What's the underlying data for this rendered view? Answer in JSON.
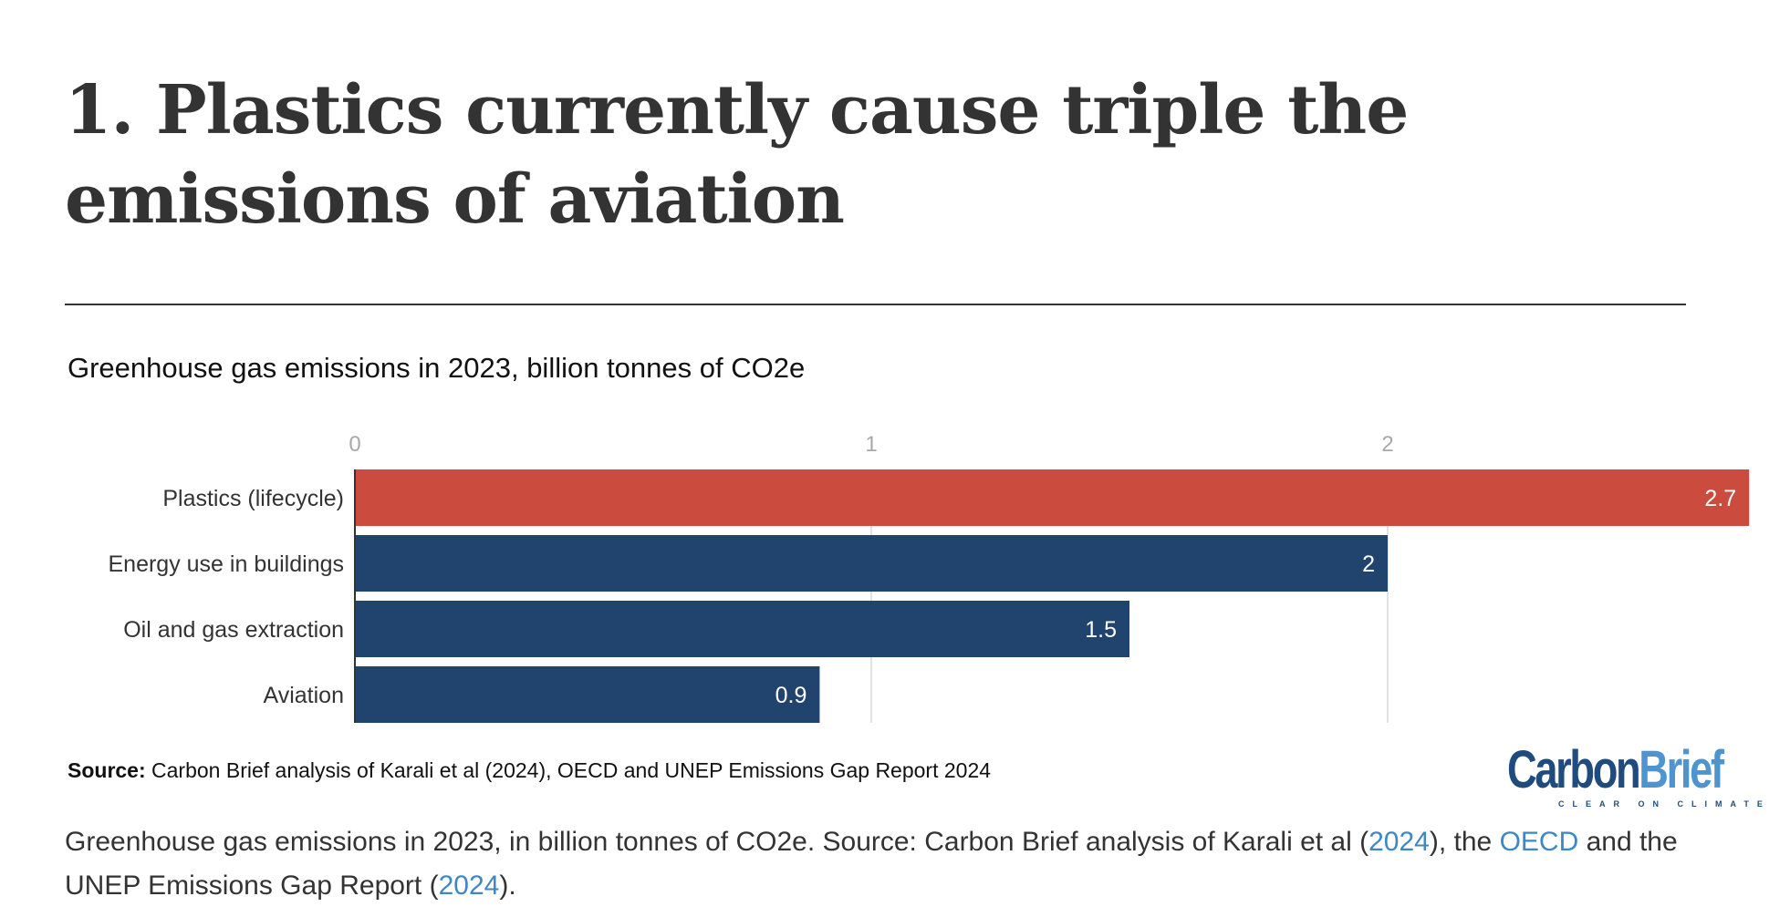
{
  "header": {
    "title": "1. Plastics currently cause triple the emissions of aviation"
  },
  "chart_data": {
    "type": "bar",
    "orientation": "horizontal",
    "title": "Greenhouse gas emissions in 2023, billion tonnes of CO2e",
    "xlabel": "",
    "ylabel": "",
    "categories": [
      "Plastics (lifecycle)",
      "Energy use in buildings",
      "Oil and gas extraction",
      "Aviation"
    ],
    "values": [
      2.7,
      2,
      1.5,
      0.9
    ],
    "value_labels": [
      "2.7",
      "2",
      "1.5",
      "0.9"
    ],
    "colors": [
      "#cb4c3e",
      "#21446e",
      "#21446e",
      "#21446e"
    ],
    "xticks": [
      0,
      1,
      2
    ],
    "xtick_labels": [
      "0",
      "1",
      "2"
    ],
    "xlim": [
      0,
      2.7
    ],
    "grid": true,
    "axis_position": "top"
  },
  "source": {
    "label": "Source:",
    "text": " Carbon Brief analysis of Karali et al (2024), OECD and UNEP Emissions Gap Report 2024"
  },
  "logo": {
    "part1": "Carbon",
    "part2": "Brief",
    "tagline": "CLEAR ON CLIMATE",
    "colors": {
      "dark": "#1f4c7d",
      "light": "#4f93cf"
    }
  },
  "caption": {
    "text1": "Greenhouse gas emissions in 2023, in billion tonnes of CO2e. Source: Carbon Brief analysis of Karali et al (",
    "link1": "2024",
    "text2": "), the ",
    "link2": "OECD",
    "text3": " and the UNEP Emissions Gap Report (",
    "link3": "2024",
    "text4": ")."
  }
}
